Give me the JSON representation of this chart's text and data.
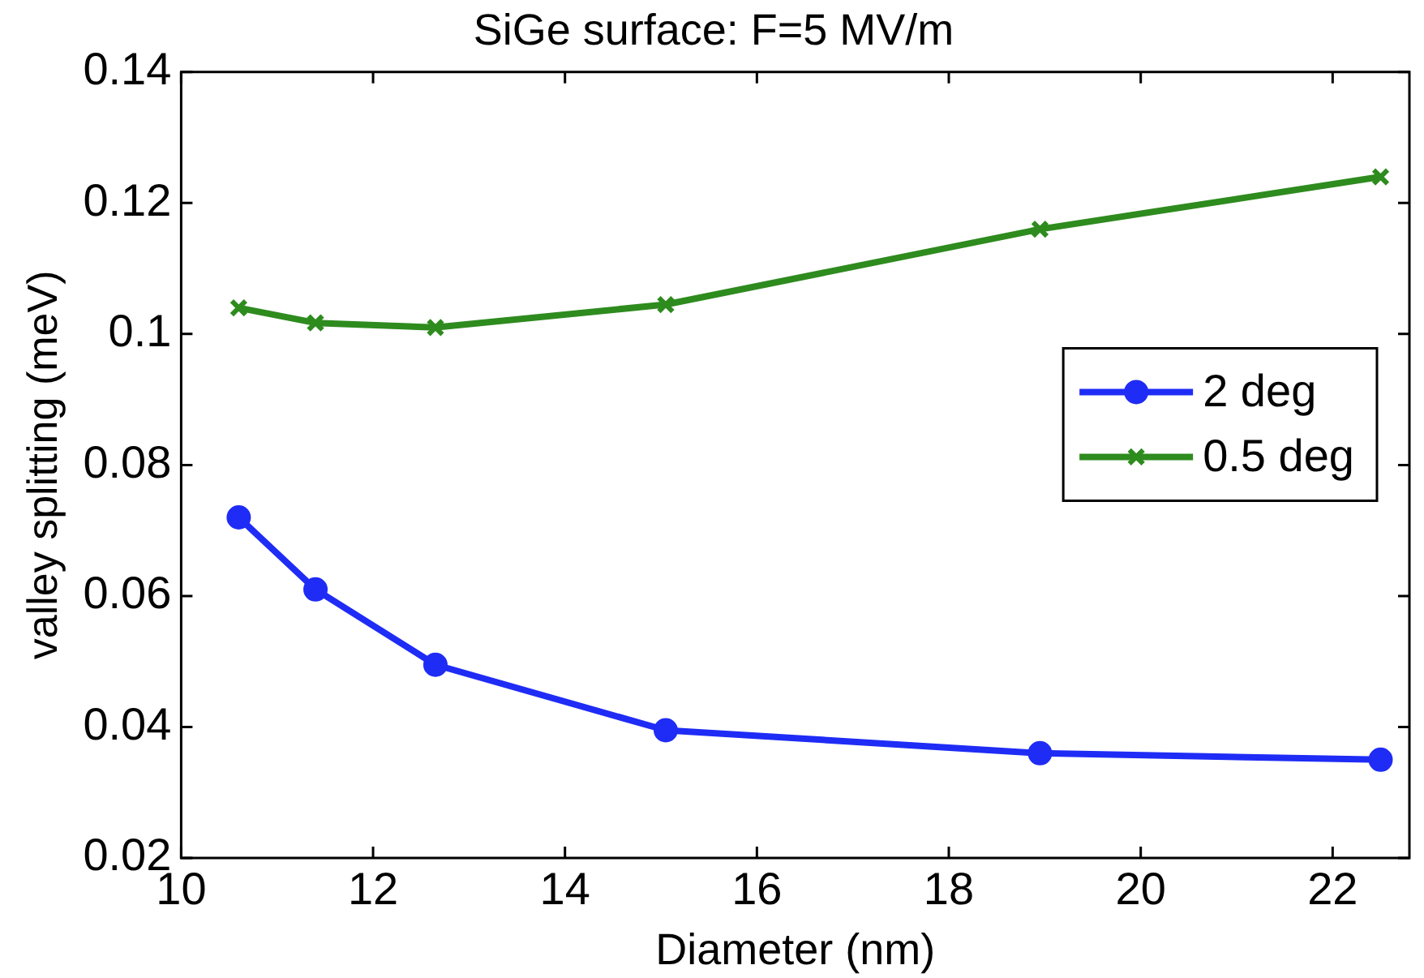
{
  "chart_data": {
    "type": "line",
    "title": "SiGe surface: F=5 MV/m",
    "xlabel": "Diameter (nm)",
    "ylabel": "valley splitting (meV)",
    "x": [
      10.6,
      11.4,
      12.65,
      15.05,
      18.95,
      22.5
    ],
    "series": [
      {
        "name": "2 deg",
        "color": "#1f2cf5",
        "marker": "circle",
        "values": [
          0.072,
          0.061,
          0.0495,
          0.0395,
          0.036,
          0.035
        ]
      },
      {
        "name": "0.5 deg",
        "color": "#2e8b1e",
        "marker": "cross",
        "values": [
          0.104,
          0.1017,
          0.101,
          0.1045,
          0.116,
          0.124
        ]
      }
    ],
    "xlim": [
      10,
      22.8
    ],
    "xticks": [
      10,
      12,
      14,
      16,
      18,
      20,
      22
    ],
    "ylim": [
      0.02,
      0.14
    ],
    "yticks": [
      0.02,
      0.04,
      0.06,
      0.08,
      0.1,
      0.12,
      0.14
    ],
    "grid": false,
    "legend": "right",
    "line_style": "solid"
  }
}
